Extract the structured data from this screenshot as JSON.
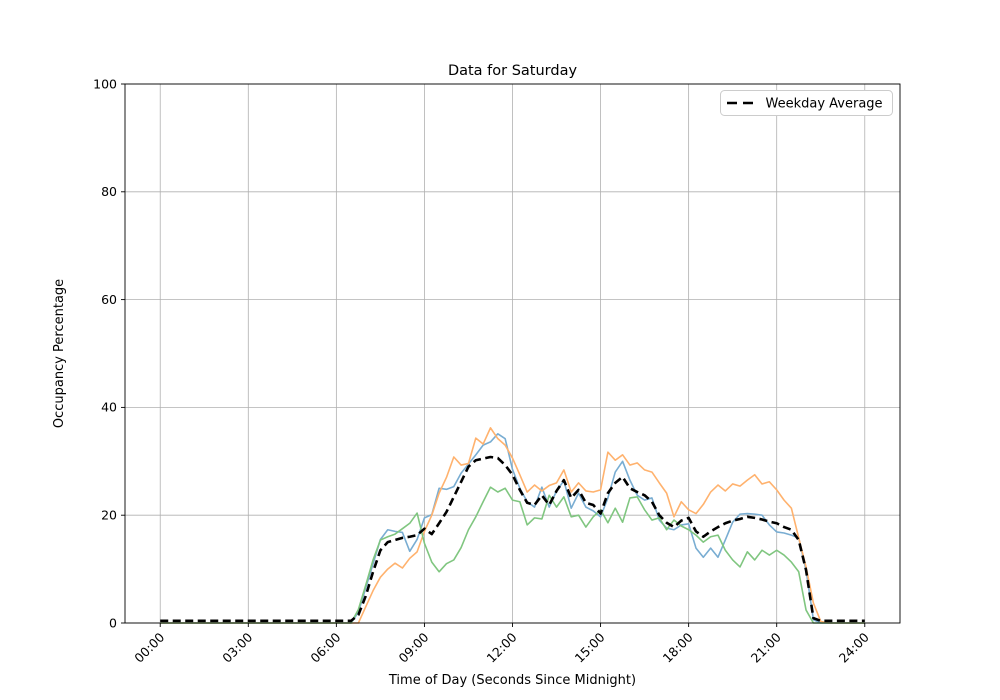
{
  "page": {
    "background": "#ffffff"
  },
  "chart_data": {
    "type": "line",
    "title": "Data for Saturday",
    "xlabel": "Time of Day (Seconds Since Midnight)",
    "ylabel": "Occupancy Percentage",
    "ylim": [
      0,
      100
    ],
    "xlim_seconds": [
      -4320,
      90720
    ],
    "grid": true,
    "grid_color": "#b0b0b0",
    "legend": {
      "position": "upper right",
      "entries": [
        "Weekday Average"
      ]
    },
    "x_ticks": {
      "seconds": [
        0,
        10800,
        21600,
        32400,
        43200,
        54000,
        64800,
        75600,
        86400
      ],
      "labels": [
        "00:00",
        "03:00",
        "06:00",
        "09:00",
        "12:00",
        "15:00",
        "18:00",
        "21:00",
        "24:00"
      ]
    },
    "y_ticks": [
      0,
      20,
      40,
      60,
      80,
      100
    ],
    "x_seconds": [
      0,
      900,
      1800,
      2700,
      3600,
      4500,
      5400,
      6300,
      7200,
      8100,
      9000,
      9900,
      10800,
      11700,
      12600,
      13500,
      14400,
      15300,
      16200,
      17100,
      18000,
      18900,
      19800,
      20700,
      21600,
      22500,
      23400,
      24300,
      25200,
      26100,
      27000,
      27900,
      28800,
      29700,
      30600,
      31500,
      32400,
      33300,
      34200,
      35100,
      36000,
      36900,
      37800,
      38700,
      39600,
      40500,
      41400,
      42300,
      43200,
      44100,
      45000,
      45900,
      46800,
      47700,
      48600,
      49500,
      50400,
      51300,
      52200,
      53100,
      54000,
      54900,
      55800,
      56700,
      57600,
      58500,
      59400,
      60300,
      61200,
      62100,
      63000,
      63900,
      64800,
      65700,
      66600,
      67500,
      68400,
      69300,
      70200,
      71100,
      72000,
      72900,
      73800,
      74700,
      75600,
      76500,
      77400,
      78300,
      79200,
      80100,
      81000,
      81900,
      82800,
      83700,
      84600,
      85500,
      86400
    ],
    "series": [
      {
        "name": "saturday-series-1",
        "color": "#79add2",
        "style": "solid",
        "in_legend": false,
        "values": [
          0,
          0,
          0,
          0,
          0,
          0,
          0,
          0,
          0,
          0,
          0,
          0,
          0,
          0,
          0,
          0,
          0,
          0,
          0,
          0,
          0,
          0,
          0,
          0,
          0,
          0,
          0,
          2,
          6.5,
          11,
          15.5,
          17.3,
          17,
          16.8,
          13.3,
          15.5,
          19.5,
          20.1,
          25,
          24.8,
          25.3,
          27.8,
          29.5,
          31.2,
          33,
          33.6,
          35.1,
          34.2,
          28.5,
          25,
          22.5,
          21.5,
          25.2,
          21.5,
          24.5,
          26.4,
          21.3,
          24.1,
          21.5,
          20.8,
          19.7,
          23.2,
          28,
          30,
          26.5,
          23.7,
          22.8,
          23.2,
          19.1,
          17.6,
          17.3,
          18.2,
          18.4,
          13.9,
          12.2,
          13.9,
          12.2,
          15.4,
          18.7,
          20.2,
          20.3,
          20.2,
          20,
          18.2,
          16.9,
          16.7,
          16.3,
          15.8,
          9.8,
          0.6,
          0,
          0,
          0,
          0,
          0,
          0,
          0
        ]
      },
      {
        "name": "saturday-series-2",
        "color": "#ffb26e",
        "style": "solid",
        "in_legend": false,
        "values": [
          0,
          0,
          0,
          0,
          0,
          0,
          0,
          0,
          0,
          0,
          0,
          0,
          0,
          0,
          0,
          0,
          0,
          0,
          0,
          0,
          0,
          0,
          0,
          0,
          0,
          0,
          0,
          0,
          3,
          6,
          8.5,
          10,
          11.1,
          10.2,
          12,
          13.2,
          17,
          20,
          24.1,
          27,
          30.8,
          29.3,
          29.6,
          34.3,
          33.2,
          36.2,
          34.2,
          33,
          30.6,
          27.5,
          24.3,
          25.6,
          24.5,
          25.5,
          26,
          28.4,
          24.3,
          26,
          24.5,
          24.3,
          24.7,
          31.7,
          30.2,
          31.2,
          29.3,
          29.7,
          28.4,
          28,
          26,
          24.1,
          19.7,
          22.5,
          21,
          20.3,
          22,
          24.3,
          25.6,
          24.5,
          25.8,
          25.4,
          26.5,
          27.5,
          25.8,
          26.2,
          24.7,
          22.8,
          21.3,
          15.8,
          10.4,
          3.7,
          0.3,
          0,
          0,
          0,
          0,
          0,
          0
        ]
      },
      {
        "name": "saturday-series-3",
        "color": "#80c680",
        "style": "solid",
        "in_legend": false,
        "values": [
          0,
          0,
          0,
          0,
          0,
          0,
          0,
          0,
          0,
          0,
          0,
          0,
          0,
          0,
          0,
          0,
          0,
          0,
          0,
          0,
          0,
          0,
          0,
          0,
          0,
          0,
          0,
          2.5,
          7,
          11.7,
          15.4,
          16,
          16.5,
          17.5,
          18.5,
          20.4,
          14.8,
          11.3,
          9.5,
          11,
          11.7,
          14,
          17.3,
          19.7,
          22.5,
          25.2,
          24.3,
          25,
          22.8,
          22.5,
          18.2,
          19.5,
          19.3,
          23.7,
          21.5,
          23.4,
          19.7,
          20,
          17.8,
          19.7,
          21,
          18.6,
          21.3,
          18.7,
          23.2,
          23.4,
          21,
          19.1,
          19.5,
          17.3,
          19.1,
          18,
          17.3,
          16.3,
          15,
          16,
          16.3,
          13.5,
          11.7,
          10.4,
          13.2,
          11.7,
          13.5,
          12.6,
          13.5,
          12.6,
          11.3,
          9.5,
          2.4,
          0,
          0,
          0,
          0,
          0,
          0,
          0,
          0
        ]
      },
      {
        "name": "Weekday Average",
        "color": "#000000",
        "style": "dashed",
        "in_legend": true,
        "values": [
          0.4,
          0.4,
          0.4,
          0.4,
          0.4,
          0.4,
          0.4,
          0.4,
          0.4,
          0.4,
          0.4,
          0.4,
          0.4,
          0.4,
          0.4,
          0.4,
          0.4,
          0.4,
          0.4,
          0.4,
          0.4,
          0.4,
          0.4,
          0.4,
          0.4,
          0.4,
          0.4,
          1.5,
          5,
          9.5,
          13.5,
          15,
          15.4,
          15.8,
          16,
          16.3,
          17.5,
          16.5,
          18.5,
          20.6,
          23.4,
          26.2,
          29,
          30.2,
          30.5,
          30.8,
          30.6,
          29.3,
          27.5,
          24.7,
          22.3,
          21.9,
          23.7,
          21.9,
          24.5,
          26.5,
          23.2,
          24.7,
          22.3,
          21.9,
          20.3,
          24.1,
          26,
          27.1,
          25,
          24.3,
          23.7,
          22.5,
          20,
          18.6,
          17.8,
          19,
          19.5,
          17,
          16,
          17,
          17.8,
          18.5,
          19,
          19.3,
          19.7,
          19.5,
          19.2,
          18.8,
          18.5,
          17.8,
          17.3,
          15.4,
          9.8,
          0.9,
          0.4,
          0.4,
          0.4,
          0.4,
          0.4,
          0.4,
          0.4
        ]
      }
    ]
  }
}
